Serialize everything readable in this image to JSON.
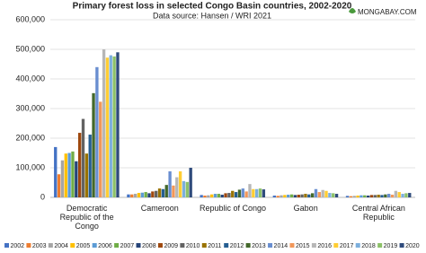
{
  "chart_data": {
    "type": "bar",
    "title": "Primary forest loss in selected Congo Basin countries, 2002-2020",
    "subtitle": "Data source: Hansen / WRI 2021",
    "logo": "MONGABAY.COM",
    "categories": [
      "Democratic Republic of the Congo",
      "Cameroon",
      "Republic of Congo",
      "Gabon",
      "Central African Republic"
    ],
    "ylim": [
      0,
      600000
    ],
    "yticks": [
      0,
      {
        "value": 100000,
        "label": "100,000"
      },
      {
        "value": 200000,
        "label": "200,000"
      },
      {
        "value": 300000,
        "label": "300,000"
      },
      {
        "value": 400000,
        "label": "400,000"
      },
      {
        "value": 500000,
        "label": "500,000"
      },
      {
        "value": 600000,
        "label": "600,000"
      }
    ],
    "grid": true,
    "series": [
      {
        "name": "2002",
        "color": "#4472c4",
        "values": [
          170000,
          10000,
          8000,
          6000,
          5000
        ]
      },
      {
        "name": "2003",
        "color": "#ed7d31",
        "values": [
          78000,
          10000,
          6000,
          5000,
          4000
        ]
      },
      {
        "name": "2004",
        "color": "#a5a5a5",
        "values": [
          125000,
          12000,
          7000,
          7000,
          5000
        ]
      },
      {
        "name": "2005",
        "color": "#ffc000",
        "values": [
          148000,
          15000,
          10000,
          8000,
          6000
        ]
      },
      {
        "name": "2006",
        "color": "#5b9bd5",
        "values": [
          150000,
          16000,
          12000,
          9000,
          7000
        ]
      },
      {
        "name": "2007",
        "color": "#70ad47",
        "values": [
          155000,
          18000,
          12000,
          10000,
          7000
        ]
      },
      {
        "name": "2008",
        "color": "#264478",
        "values": [
          122000,
          14000,
          9000,
          8000,
          6000
        ]
      },
      {
        "name": "2009",
        "color": "#9e480e",
        "values": [
          218000,
          20000,
          14000,
          9000,
          8000
        ]
      },
      {
        "name": "2010",
        "color": "#636363",
        "values": [
          265000,
          22000,
          15000,
          10000,
          8000
        ]
      },
      {
        "name": "2011",
        "color": "#997300",
        "values": [
          148000,
          30000,
          22000,
          12000,
          9000
        ]
      },
      {
        "name": "2012",
        "color": "#255e91",
        "values": [
          212000,
          28000,
          18000,
          10000,
          8000
        ]
      },
      {
        "name": "2013",
        "color": "#43682b",
        "values": [
          352000,
          42000,
          26000,
          14000,
          10000
        ]
      },
      {
        "name": "2014",
        "color": "#698ed0",
        "values": [
          440000,
          88000,
          30000,
          28000,
          12000
        ]
      },
      {
        "name": "2015",
        "color": "#f1975a",
        "values": [
          323000,
          40000,
          20000,
          18000,
          9000
        ]
      },
      {
        "name": "2016",
        "color": "#b7b7b7",
        "values": [
          500000,
          68000,
          45000,
          25000,
          22000
        ]
      },
      {
        "name": "2017",
        "color": "#ffcd33",
        "values": [
          472000,
          88000,
          28000,
          22000,
          18000
        ]
      },
      {
        "name": "2018",
        "color": "#7cafdd",
        "values": [
          480000,
          55000,
          28000,
          15000,
          12000
        ]
      },
      {
        "name": "2019",
        "color": "#8cc168",
        "values": [
          476000,
          52000,
          30000,
          14000,
          14000
        ]
      },
      {
        "name": "2020",
        "color": "#2f4b7c",
        "values": [
          490000,
          100000,
          27000,
          12000,
          15000
        ]
      }
    ]
  }
}
